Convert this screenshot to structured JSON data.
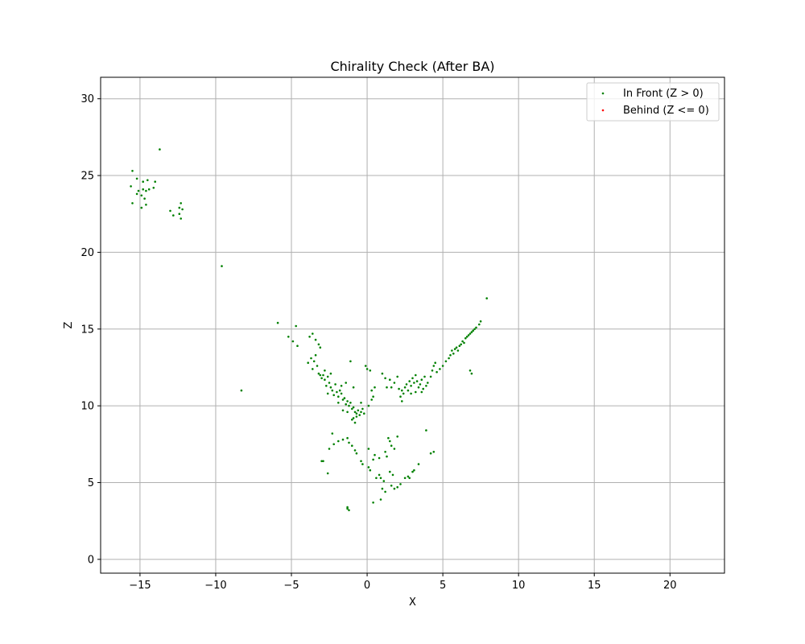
{
  "chart_data": {
    "type": "scatter",
    "title": "Chirality Check (After BA)",
    "xlabel": "X",
    "ylabel": "Z",
    "xlim": [
      -17.6,
      23.6
    ],
    "ylim": [
      -0.9,
      31.4
    ],
    "xticks": [
      -15,
      -10,
      -5,
      0,
      5,
      10,
      15,
      20
    ],
    "yticks": [
      0,
      5,
      10,
      15,
      20,
      25,
      30
    ],
    "xtick_labels": [
      "−15",
      "−10",
      "−5",
      "0",
      "5",
      "10",
      "15",
      "20"
    ],
    "ytick_labels": [
      "0",
      "5",
      "10",
      "15",
      "20",
      "25",
      "30"
    ],
    "grid": true,
    "legend_position": "top-right",
    "series": [
      {
        "name": "In Front (Z > 0)",
        "color": "#008000",
        "points": [
          [
            -15.5,
            25.3
          ],
          [
            -15.2,
            24.8
          ],
          [
            -14.8,
            24.6
          ],
          [
            -15.6,
            24.3
          ],
          [
            -14.5,
            24.7
          ],
          [
            -14.0,
            24.6
          ],
          [
            -15.1,
            24.0
          ],
          [
            -14.8,
            24.1
          ],
          [
            -14.6,
            24.0
          ],
          [
            -14.4,
            24.1
          ],
          [
            -14.1,
            24.2
          ],
          [
            -15.2,
            23.8
          ],
          [
            -14.9,
            23.7
          ],
          [
            -14.7,
            23.5
          ],
          [
            -15.5,
            23.2
          ],
          [
            -14.6,
            23.1
          ],
          [
            -14.9,
            22.9
          ],
          [
            -13.7,
            26.7
          ],
          [
            -13.0,
            22.7
          ],
          [
            -12.8,
            22.4
          ],
          [
            -12.4,
            22.9
          ],
          [
            -12.3,
            23.2
          ],
          [
            -12.2,
            22.8
          ],
          [
            -12.4,
            22.5
          ],
          [
            -12.3,
            22.2
          ],
          [
            -9.6,
            19.1
          ],
          [
            -8.3,
            11.0
          ],
          [
            -5.9,
            15.4
          ],
          [
            -4.7,
            15.2
          ],
          [
            -5.2,
            14.5
          ],
          [
            -4.9,
            14.2
          ],
          [
            -4.6,
            13.9
          ],
          [
            -3.8,
            14.5
          ],
          [
            -3.6,
            14.7
          ],
          [
            -3.4,
            14.3
          ],
          [
            -3.2,
            14.0
          ],
          [
            -3.1,
            13.8
          ],
          [
            -3.4,
            13.3
          ],
          [
            -3.7,
            13.1
          ],
          [
            -3.5,
            12.9
          ],
          [
            -3.9,
            12.8
          ],
          [
            -3.3,
            12.6
          ],
          [
            -3.6,
            12.4
          ],
          [
            -3.2,
            12.1
          ],
          [
            -2.9,
            12.0
          ],
          [
            -3.0,
            11.8
          ],
          [
            -2.8,
            11.7
          ],
          [
            -2.6,
            11.9
          ],
          [
            -2.5,
            11.5
          ],
          [
            -2.7,
            11.3
          ],
          [
            -2.4,
            11.2
          ],
          [
            -2.3,
            11.0
          ],
          [
            -2.1,
            11.4
          ],
          [
            -2.0,
            10.9
          ],
          [
            -2.2,
            10.7
          ],
          [
            -1.9,
            10.6
          ],
          [
            -1.8,
            11.0
          ],
          [
            -1.7,
            10.8
          ],
          [
            -1.6,
            10.4
          ],
          [
            -1.5,
            10.5
          ],
          [
            -1.3,
            10.3
          ],
          [
            -1.4,
            10.1
          ],
          [
            -1.2,
            10.0
          ],
          [
            -1.1,
            10.2
          ],
          [
            -1.0,
            9.8
          ],
          [
            -0.9,
            9.9
          ],
          [
            -0.8,
            9.6
          ],
          [
            -0.7,
            9.5
          ],
          [
            -0.6,
            9.7
          ],
          [
            -0.5,
            9.4
          ],
          [
            -0.4,
            9.6
          ],
          [
            -0.3,
            9.8
          ],
          [
            -0.2,
            9.5
          ],
          [
            -0.9,
            9.2
          ],
          [
            -1.0,
            9.1
          ],
          [
            -0.8,
            8.9
          ],
          [
            -0.7,
            9.3
          ],
          [
            -1.3,
            9.6
          ],
          [
            -1.6,
            9.7
          ],
          [
            -1.4,
            11.5
          ],
          [
            -0.9,
            11.2
          ],
          [
            -1.1,
            12.9
          ],
          [
            -0.1,
            12.6
          ],
          [
            0.0,
            12.4
          ],
          [
            0.2,
            12.3
          ],
          [
            0.3,
            11.0
          ],
          [
            0.4,
            10.6
          ],
          [
            0.3,
            10.4
          ],
          [
            0.5,
            11.2
          ],
          [
            -0.4,
            10.2
          ],
          [
            0.1,
            10.0
          ],
          [
            -1.7,
            11.3
          ],
          [
            -2.4,
            12.1
          ],
          [
            -2.8,
            12.3
          ],
          [
            -3.1,
            12.0
          ],
          [
            -2.6,
            10.8
          ],
          [
            -1.9,
            10.2
          ],
          [
            1.0,
            12.1
          ],
          [
            1.2,
            11.8
          ],
          [
            1.5,
            11.7
          ],
          [
            1.8,
            11.5
          ],
          [
            2.0,
            11.9
          ],
          [
            1.6,
            11.2
          ],
          [
            1.3,
            11.2
          ],
          [
            2.1,
            11.1
          ],
          [
            2.3,
            11.0
          ],
          [
            2.4,
            10.8
          ],
          [
            2.2,
            10.6
          ],
          [
            2.5,
            11.2
          ],
          [
            2.6,
            11.4
          ],
          [
            2.7,
            11.0
          ],
          [
            2.8,
            11.6
          ],
          [
            2.9,
            11.3
          ],
          [
            3.0,
            11.8
          ],
          [
            3.1,
            11.5
          ],
          [
            3.2,
            12.0
          ],
          [
            3.3,
            11.6
          ],
          [
            3.4,
            11.2
          ],
          [
            3.5,
            11.4
          ],
          [
            3.6,
            11.7
          ],
          [
            3.7,
            11.1
          ],
          [
            3.8,
            11.9
          ],
          [
            3.9,
            11.3
          ],
          [
            4.0,
            11.5
          ],
          [
            3.2,
            10.9
          ],
          [
            2.9,
            10.8
          ],
          [
            3.6,
            10.9
          ],
          [
            2.3,
            10.3
          ],
          [
            4.2,
            11.9
          ],
          [
            4.3,
            12.3
          ],
          [
            4.4,
            12.6
          ],
          [
            4.6,
            12.2
          ],
          [
            4.8,
            12.4
          ],
          [
            5.0,
            12.6
          ],
          [
            5.2,
            12.9
          ],
          [
            5.4,
            13.1
          ],
          [
            5.5,
            13.3
          ],
          [
            5.6,
            13.6
          ],
          [
            5.7,
            13.4
          ],
          [
            5.8,
            13.7
          ],
          [
            5.9,
            13.8
          ],
          [
            6.0,
            13.6
          ],
          [
            6.1,
            13.9
          ],
          [
            6.2,
            14.0
          ],
          [
            6.3,
            14.2
          ],
          [
            6.4,
            14.1
          ],
          [
            6.5,
            14.4
          ],
          [
            6.6,
            14.5
          ],
          [
            6.7,
            14.6
          ],
          [
            6.8,
            14.7
          ],
          [
            6.9,
            14.8
          ],
          [
            7.0,
            14.9
          ],
          [
            7.1,
            15.0
          ],
          [
            7.2,
            15.1
          ],
          [
            7.4,
            15.3
          ],
          [
            7.5,
            15.5
          ],
          [
            7.9,
            17.0
          ],
          [
            6.8,
            12.3
          ],
          [
            6.9,
            12.1
          ],
          [
            4.5,
            12.8
          ],
          [
            -1.6,
            7.8
          ],
          [
            -1.9,
            7.7
          ],
          [
            -2.2,
            7.5
          ],
          [
            -2.3,
            8.2
          ],
          [
            -2.5,
            7.2
          ],
          [
            -2.9,
            6.4
          ],
          [
            -3.0,
            6.4
          ],
          [
            -2.6,
            5.6
          ],
          [
            -1.3,
            7.9
          ],
          [
            -1.2,
            7.6
          ],
          [
            -1.0,
            7.4
          ],
          [
            -0.8,
            7.1
          ],
          [
            -0.7,
            6.9
          ],
          [
            -0.4,
            6.4
          ],
          [
            -0.3,
            6.2
          ],
          [
            0.1,
            7.2
          ],
          [
            0.2,
            5.8
          ],
          [
            0.1,
            6.0
          ],
          [
            0.4,
            6.5
          ],
          [
            0.5,
            6.8
          ],
          [
            0.6,
            5.3
          ],
          [
            0.8,
            5.5
          ],
          [
            0.9,
            5.3
          ],
          [
            1.2,
            7.0
          ],
          [
            1.4,
            7.9
          ],
          [
            1.5,
            7.7
          ],
          [
            1.6,
            7.4
          ],
          [
            1.8,
            7.2
          ],
          [
            2.0,
            8.0
          ],
          [
            1.3,
            6.7
          ],
          [
            1.5,
            5.7
          ],
          [
            1.7,
            5.5
          ],
          [
            1.1,
            5.1
          ],
          [
            1.0,
            4.6
          ],
          [
            1.2,
            4.4
          ],
          [
            1.6,
            4.8
          ],
          [
            1.8,
            4.6
          ],
          [
            2.0,
            4.7
          ],
          [
            2.2,
            4.9
          ],
          [
            2.5,
            5.3
          ],
          [
            2.7,
            5.4
          ],
          [
            2.8,
            5.3
          ],
          [
            3.0,
            5.7
          ],
          [
            3.1,
            5.8
          ],
          [
            3.4,
            6.2
          ],
          [
            3.9,
            8.4
          ],
          [
            4.2,
            6.9
          ],
          [
            4.4,
            7.0
          ],
          [
            0.4,
            3.7
          ],
          [
            0.9,
            3.9
          ],
          [
            -1.3,
            3.3
          ],
          [
            -1.2,
            3.2
          ],
          [
            -1.3,
            3.4
          ],
          [
            0.8,
            6.6
          ]
        ]
      },
      {
        "name": "Behind (Z <= 0)",
        "color": "#ff0000",
        "points": []
      }
    ]
  }
}
